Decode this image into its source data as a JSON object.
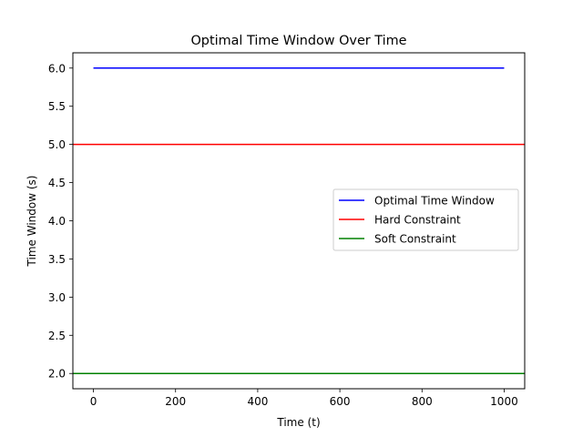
{
  "chart_data": {
    "type": "line",
    "title": "Optimal Time Window Over Time",
    "xlabel": "Time (t)",
    "ylabel": "Time Window (s)",
    "xlim": [
      -50,
      1050
    ],
    "ylim": [
      1.8,
      6.2
    ],
    "xticks": [
      0,
      200,
      400,
      600,
      800,
      1000
    ],
    "yticks": [
      2.0,
      2.5,
      3.0,
      3.5,
      4.0,
      4.5,
      5.0,
      5.5,
      6.0
    ],
    "xtick_labels": [
      "0",
      "200",
      "400",
      "600",
      "800",
      "1000"
    ],
    "ytick_labels": [
      "2.0",
      "2.5",
      "3.0",
      "3.5",
      "4.0",
      "4.5",
      "5.0",
      "5.5",
      "6.0"
    ],
    "grid": false,
    "legend_position": "center-right",
    "series": [
      {
        "name": "Optimal Time Window",
        "color": "#0000ff",
        "kind": "line",
        "x": [
          0,
          1000
        ],
        "y": [
          6.0,
          6.0
        ]
      },
      {
        "name": "Hard Constraint",
        "color": "#ff0000",
        "kind": "hline",
        "y": 5.0
      },
      {
        "name": "Soft Constraint",
        "color": "#008000",
        "kind": "hline",
        "y": 2.0
      }
    ]
  }
}
